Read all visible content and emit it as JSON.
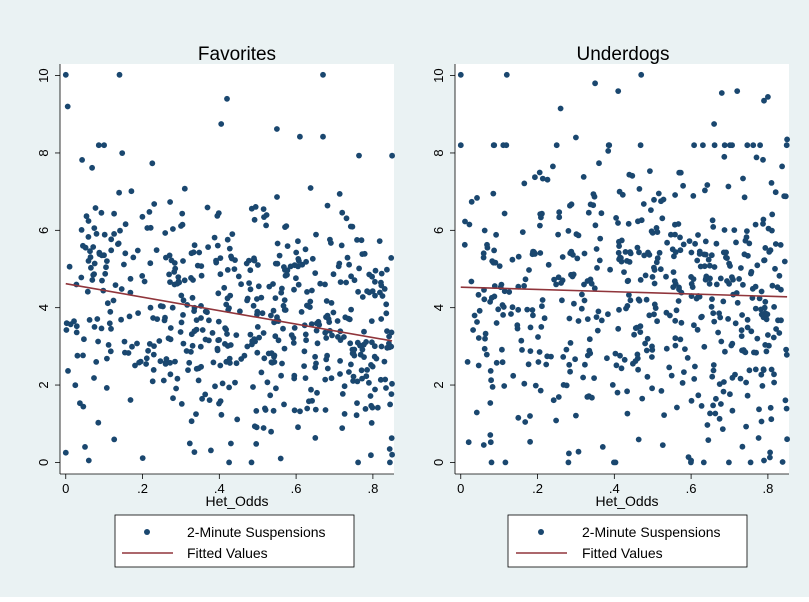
{
  "colors": {
    "outer_background": "#eaf2f3",
    "plot_background": "#ffffff",
    "marker": "#1a476f",
    "fitted_line": "#90353b"
  },
  "chart_data": [
    {
      "type": "scatter",
      "title": "Favorites",
      "xlabel": "Het_Odds",
      "ylabel": "",
      "xlim": [
        -0.015,
        0.855
      ],
      "ylim": [
        -0.3,
        10.3
      ],
      "x_ticks": [
        0,
        0.2,
        0.4,
        0.6,
        0.8
      ],
      "x_tick_labels": [
        "0",
        ".2",
        ".4",
        ".6",
        ".8"
      ],
      "y_ticks": [
        0,
        2,
        4,
        6,
        8,
        10
      ],
      "y_tick_labels": [
        "0",
        "2",
        "4",
        "6",
        "8",
        "10"
      ],
      "grid": false,
      "legend_position": "bottom",
      "legend": [
        "2-Minute Suspensions",
        "Fitted Values"
      ],
      "scatter_series": {
        "name": "2-Minute Suspensions",
        "intercept": 4.62,
        "slope": -1.74,
        "spread": 1.65,
        "seed": 11,
        "count": 560,
        "x_max": 0.85,
        "extra_points": [
          [
            0.0,
            10.02
          ],
          [
            0.14,
            10.02
          ],
          [
            0.67,
            10.02
          ],
          [
            0.005,
            9.2
          ],
          [
            0.42,
            9.4
          ],
          [
            0.405,
            8.75
          ],
          [
            0.55,
            8.62
          ],
          [
            0.61,
            8.42
          ],
          [
            0.67,
            8.42
          ],
          [
            0.85,
            7.93
          ],
          [
            0.0,
            0.25
          ],
          [
            0.06,
            0.05
          ],
          [
            0.05,
            0.4
          ],
          [
            0.56,
            0.1
          ],
          [
            0.85,
            0.2
          ]
        ]
      },
      "fitted_line": {
        "name": "Fitted Values",
        "x": [
          0,
          0.85
        ],
        "y": [
          4.62,
          3.14
        ]
      }
    },
    {
      "type": "scatter",
      "title": "Underdogs",
      "xlabel": "Het_Odds",
      "ylabel": "",
      "xlim": [
        -0.015,
        0.855
      ],
      "ylim": [
        -0.3,
        10.3
      ],
      "x_ticks": [
        0,
        0.2,
        0.4,
        0.6,
        0.8
      ],
      "x_tick_labels": [
        "0",
        ".2",
        ".4",
        ".6",
        ".8"
      ],
      "y_ticks": [
        0,
        2,
        4,
        6,
        8,
        10
      ],
      "y_tick_labels": [
        "0",
        "2",
        "4",
        "6",
        "8",
        "10"
      ],
      "grid": false,
      "legend_position": "bottom",
      "legend": [
        "2-Minute Suspensions",
        "Fitted Values"
      ],
      "scatter_series": {
        "name": "2-Minute Suspensions",
        "intercept": 4.53,
        "slope": -0.3,
        "spread": 1.9,
        "seed": 23,
        "count": 560,
        "x_max": 0.85,
        "extra_points": [
          [
            0.0,
            10.02
          ],
          [
            0.12,
            10.02
          ],
          [
            0.47,
            10.02
          ],
          [
            0.35,
            9.8
          ],
          [
            0.41,
            9.6
          ],
          [
            0.26,
            9.15
          ],
          [
            0.68,
            9.55
          ],
          [
            0.72,
            9.6
          ],
          [
            0.8,
            9.45
          ],
          [
            0.79,
            9.35
          ],
          [
            0.66,
            8.75
          ],
          [
            0.0,
            8.2
          ],
          [
            0.3,
            8.4
          ],
          [
            0.85,
            8.35
          ],
          [
            0.08,
            0.0
          ],
          [
            0.6,
            0.05
          ],
          [
            0.79,
            0.05
          ],
          [
            0.06,
            0.45
          ],
          [
            0.37,
            0.4
          ],
          [
            0.85,
            0.6
          ]
        ]
      },
      "fitted_line": {
        "name": "Fitted Values",
        "x": [
          0,
          0.85
        ],
        "y": [
          4.53,
          4.28
        ]
      }
    }
  ]
}
